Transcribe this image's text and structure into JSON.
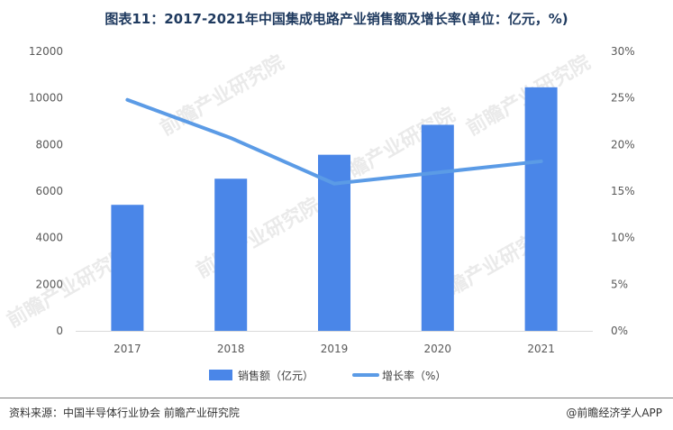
{
  "page": {
    "title": "图表11：2017-2021年中国集成电路产业销售额及增长率(单位：亿元，%)",
    "source": "资料来源：中国半导体行业协会 前瞻产业研究院",
    "copyright": "@前瞻经济学人APP",
    "watermark": "前瞻产业研究院"
  },
  "chart_data": {
    "type": "bar",
    "categories": [
      "2017",
      "2018",
      "2019",
      "2020",
      "2021"
    ],
    "series": [
      {
        "name": "销售额（亿元）",
        "type": "bar",
        "axis": "left",
        "values": [
          5411,
          6532,
          7562,
          8848,
          10458
        ],
        "color": "#4a86e8"
      },
      {
        "name": "增长率（%）",
        "type": "line",
        "axis": "right",
        "values": [
          24.8,
          20.7,
          15.8,
          17.0,
          18.2
        ],
        "color": "#5b9be6"
      }
    ],
    "y_left": {
      "min": 0,
      "max": 12000,
      "step": 2000,
      "ticks": [
        "0",
        "2000",
        "4000",
        "6000",
        "8000",
        "10000",
        "12000"
      ]
    },
    "y_right": {
      "min": 0,
      "max": 30,
      "step": 5,
      "ticks": [
        "0%",
        "5%",
        "10%",
        "15%",
        "20%",
        "25%",
        "30%"
      ]
    },
    "legend_position": "bottom",
    "grid": false
  }
}
